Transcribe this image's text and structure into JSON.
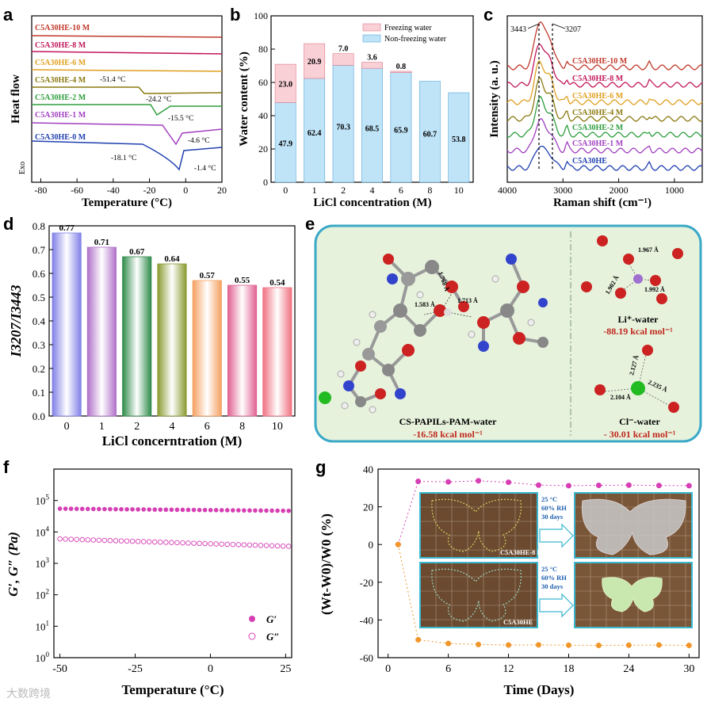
{
  "panel_letters": [
    "a",
    "b",
    "c",
    "d",
    "e",
    "f",
    "g"
  ],
  "watermark": "大数跨境",
  "chart_data": [
    {
      "id": "a",
      "type": "line",
      "xlabel": "Temperature (°C)",
      "ylabel": "Heat flow",
      "exo_label": "Exo",
      "xlim": [
        -85,
        20
      ],
      "xticks": [
        -80,
        -60,
        -40,
        -20,
        0,
        20
      ],
      "series": [
        {
          "name": "C5A30HE-10 M",
          "color": "#c0392b"
        },
        {
          "name": "C5A30HE-8 M",
          "color": "#c2185b"
        },
        {
          "name": "C5A30HE-6 M",
          "color": "#e0a020"
        },
        {
          "name": "C5A30HE-4 M",
          "color": "#8a7a10"
        },
        {
          "name": "C5A30HE-2 M",
          "color": "#2e9e3e"
        },
        {
          "name": "C5A30HE-1 M",
          "color": "#a040c0"
        },
        {
          "name": "C5A30HE-0 M",
          "color": "#2040b0"
        }
      ],
      "annotations": [
        "-51.4 °C",
        "-24.2 °C",
        "-15.5 °C",
        "-4.6 °C",
        "-18.1 °C",
        "-1.4 °C"
      ]
    },
    {
      "id": "b",
      "type": "bar",
      "xlabel": "LiCl concentration (M)",
      "ylabel": "Water content (%)",
      "ylim": [
        0,
        100
      ],
      "yticks": [
        0,
        20,
        40,
        60,
        80,
        100
      ],
      "categories": [
        "0",
        "1",
        "2",
        "4",
        "6",
        "8",
        "10"
      ],
      "series": [
        {
          "name": "Non-freezing water",
          "color": "#bfe3f7",
          "values": [
            47.9,
            62.4,
            70.3,
            68.5,
            65.9,
            60.7,
            53.8
          ]
        },
        {
          "name": "Freezing water",
          "color": "#f9d0d6",
          "values": [
            23.0,
            20.9,
            7.0,
            3.6,
            0.8,
            0,
            0
          ]
        }
      ],
      "freezing_labels": [
        "23.0",
        "20.9",
        "7.0",
        "3.6",
        "0.8"
      ],
      "nonfreezing_labels": [
        "47.9",
        "62.4",
        "70.3",
        "68.5",
        "65.9",
        "60.7",
        "53.8"
      ]
    },
    {
      "id": "c",
      "type": "line",
      "xlabel": "Raman shift (cm⁻¹)",
      "ylabel": "Intensity (a. u.)",
      "xlim": [
        4000,
        500
      ],
      "xticks": [
        4000,
        3000,
        2000,
        1000
      ],
      "markers": [
        {
          "x": 3443,
          "label": "3443"
        },
        {
          "x": 3207,
          "label": "3207"
        }
      ],
      "series": [
        {
          "name": "C5A30HE-10 M",
          "color": "#c0392b"
        },
        {
          "name": "C5A30HE-8 M",
          "color": "#c2185b"
        },
        {
          "name": "C5A30HE-6 M",
          "color": "#e0a020"
        },
        {
          "name": "C5A30HE-4 M",
          "color": "#8a7a10"
        },
        {
          "name": "C5A30HE-2 M",
          "color": "#2e9e3e"
        },
        {
          "name": "C5A30HE-1 M",
          "color": "#a040c0"
        },
        {
          "name": "C5A30HE",
          "color": "#2040b0"
        }
      ]
    },
    {
      "id": "d",
      "type": "bar",
      "xlabel": "LiCl  concerntration (M)",
      "ylabel": "I3207/I3443",
      "ylim": [
        0.0,
        0.8
      ],
      "yticks": [
        0.0,
        0.1,
        0.2,
        0.3,
        0.4,
        0.5,
        0.6,
        0.7,
        0.8
      ],
      "categories": [
        "0",
        "1",
        "2",
        "4",
        "6",
        "8",
        "10"
      ],
      "values": [
        0.77,
        0.71,
        0.67,
        0.64,
        0.57,
        0.55,
        0.54
      ],
      "colors": [
        "#8080e8",
        "#b070c8",
        "#2e8b4a",
        "#8a9a30",
        "#f5a060",
        "#e06090",
        "#f07080"
      ]
    },
    {
      "id": "e",
      "type": "diagram",
      "left_title": "CS-PAPILs-PAM-water",
      "left_energy": "-16.58 kcal mol⁻¹",
      "left_distances": [
        "1.768 Å",
        "1.583 Å",
        "1.713 Å"
      ],
      "li_title": "Li⁺-water",
      "li_energy": "-88.19 kcal mol⁻¹",
      "li_distances": [
        "1.967 Å",
        "1.902 Å",
        "1.992 Å"
      ],
      "cl_title": "Cl⁻-water",
      "cl_energy": "- 30.01 kcal mol⁻¹",
      "cl_distances": [
        "2.127 Å",
        "2.235 Å",
        "2.104 Å"
      ]
    },
    {
      "id": "f",
      "type": "scatter",
      "xlabel": "Temperature (°C)",
      "ylabel": "G′, G″ (Pa)",
      "xlim": [
        -52,
        27
      ],
      "xticks": [
        -50,
        -25,
        0,
        25
      ],
      "ylog": true,
      "ylim": [
        1,
        1000000
      ],
      "series": [
        {
          "name": "G′",
          "color": "#d63fb4",
          "filled": true,
          "start": 55000,
          "end": 47000
        },
        {
          "name": "G″",
          "color": "#d63fb4",
          "filled": false,
          "start": 6000,
          "end": 3500
        }
      ]
    },
    {
      "id": "g",
      "type": "scatter",
      "xlabel": "Time (Days)",
      "ylabel": "(Wt-W0)/W0 (%)",
      "xlim": [
        -1,
        31
      ],
      "xticks": [
        0,
        6,
        12,
        18,
        24,
        30
      ],
      "ylim": [
        -60,
        40
      ],
      "yticks": [
        -60,
        -40,
        -20,
        0,
        20,
        40
      ],
      "series": [
        {
          "name": "C5A30HE-8 M",
          "color": "#d63fb4",
          "x": [
            1,
            3,
            6,
            9,
            12,
            15,
            18,
            21,
            24,
            27,
            30
          ],
          "y": [
            0,
            33.5,
            33.2,
            33.8,
            33,
            31.5,
            31.2,
            31.4,
            31.5,
            31.3,
            31.2
          ]
        },
        {
          "name": "C5A30HE",
          "color": "#f0962a",
          "x": [
            1,
            3,
            6,
            9,
            12,
            15,
            18,
            21,
            24,
            27,
            30
          ],
          "y": [
            0,
            -50.5,
            -52.5,
            -53,
            -53.3,
            -53.2,
            -53.4,
            -53.5,
            -53.4,
            -53.3,
            -53.5
          ]
        }
      ],
      "inset_condition": [
        "25 °C",
        "60% RH",
        "30 days"
      ],
      "inset_labels": [
        "C5A30HE-8 M",
        "C5A30HE"
      ]
    }
  ]
}
